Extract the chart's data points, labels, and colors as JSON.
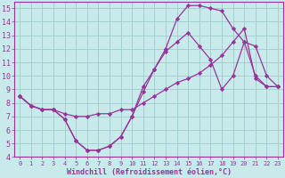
{
  "bg_color": "#c8eaea",
  "line_color": "#993399",
  "grid_color": "#a0cccc",
  "xlabel": "Windchill (Refroidissement éolien,°C)",
  "xlim": [
    -0.5,
    23.5
  ],
  "ylim": [
    4,
    15.5
  ],
  "xticks": [
    0,
    1,
    2,
    3,
    4,
    5,
    6,
    7,
    8,
    9,
    10,
    11,
    12,
    13,
    14,
    15,
    16,
    17,
    18,
    19,
    20,
    21,
    22,
    23
  ],
  "yticks": [
    4,
    5,
    6,
    7,
    8,
    9,
    10,
    11,
    12,
    13,
    14,
    15
  ],
  "line1_x": [
    0,
    1,
    2,
    3,
    4,
    5,
    6,
    7,
    8,
    9,
    10,
    11,
    12,
    13,
    14,
    15,
    16,
    17,
    18,
    19,
    20,
    21,
    22,
    23
  ],
  "line1_y": [
    8.5,
    7.8,
    7.5,
    7.5,
    6.8,
    5.2,
    4.5,
    4.5,
    4.8,
    5.5,
    7.0,
    8.8,
    10.5,
    11.8,
    12.5,
    13.2,
    12.2,
    11.2,
    9.0,
    10.0,
    12.5,
    12.2,
    10.0,
    9.2
  ],
  "line2_x": [
    0,
    1,
    2,
    3,
    4,
    5,
    6,
    7,
    8,
    9,
    10,
    11,
    12,
    13,
    14,
    15,
    16,
    17,
    18,
    19,
    20,
    21,
    22,
    23
  ],
  "line2_y": [
    8.5,
    7.8,
    7.5,
    7.5,
    7.2,
    7.0,
    7.0,
    7.2,
    7.2,
    7.5,
    7.5,
    8.0,
    8.5,
    9.0,
    9.5,
    9.8,
    10.2,
    10.8,
    11.5,
    12.5,
    13.5,
    9.8,
    9.2,
    9.2
  ],
  "line3_x": [
    0,
    1,
    2,
    3,
    4,
    5,
    6,
    7,
    8,
    9,
    10,
    11,
    12,
    13,
    14,
    15,
    16,
    17,
    18,
    19,
    20,
    21,
    22,
    23
  ],
  "line3_y": [
    8.5,
    7.8,
    7.5,
    7.5,
    6.8,
    5.2,
    4.5,
    4.5,
    4.8,
    5.5,
    7.0,
    9.2,
    10.5,
    12.0,
    14.2,
    15.2,
    15.2,
    15.0,
    14.8,
    13.5,
    12.5,
    10.0,
    9.2,
    9.2
  ],
  "marker": "D",
  "markersize": 2.2,
  "linewidth": 0.9
}
